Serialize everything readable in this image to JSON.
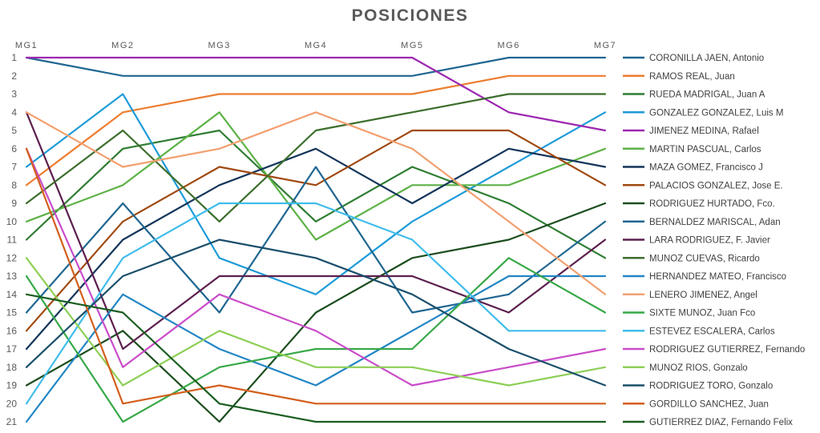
{
  "chart_data": {
    "type": "line",
    "title": "POSICIONES",
    "categories": [
      "MG1",
      "MG2",
      "MG3",
      "MG4",
      "MG5",
      "MG6",
      "MG7"
    ],
    "y_ticks": [
      1,
      2,
      3,
      4,
      5,
      6,
      7,
      8,
      9,
      10,
      11,
      12,
      13,
      14,
      15,
      16,
      17,
      18,
      19,
      20,
      21
    ],
    "ylim": [
      1,
      21
    ],
    "y_reversed": true,
    "grid": false,
    "legend_position": "right",
    "series": [
      {
        "name": "CORONILLA JAEN, Antonio",
        "color": "#1F6691",
        "values": [
          1,
          2,
          2,
          2,
          2,
          1,
          1
        ]
      },
      {
        "name": "RAMOS REAL, Juan",
        "color": "#ED7D31",
        "values": [
          8,
          4,
          3,
          3,
          3,
          2,
          2
        ]
      },
      {
        "name": "RUEDA MADRIGAL, Juan A",
        "color": "#2E7D32",
        "values": [
          11,
          6,
          5,
          10,
          7,
          9,
          12
        ]
      },
      {
        "name": "GONZALEZ GONZALEZ, Luis M",
        "color": "#1E9BD7",
        "values": [
          7,
          3,
          12,
          14,
          10,
          7,
          4
        ]
      },
      {
        "name": "JIMENEZ MEDINA, Rafael",
        "color": "#9C27B0",
        "values": [
          1,
          1,
          1,
          1,
          1,
          4,
          5
        ]
      },
      {
        "name": "MARTIN PASCUAL, Carlos",
        "color": "#5DB246",
        "values": [
          10,
          8,
          4,
          11,
          8,
          8,
          6
        ]
      },
      {
        "name": "MAZA GOMEZ, Francisco J",
        "color": "#13355A",
        "values": [
          17,
          11,
          8,
          6,
          9,
          6,
          7
        ]
      },
      {
        "name": "PALACIOS GONZALEZ, Jose E.",
        "color": "#A04A10",
        "values": [
          16,
          10,
          7,
          8,
          5,
          5,
          8
        ]
      },
      {
        "name": "RODRIGUEZ HURTADO, Fco.",
        "color": "#1B4D1E",
        "values": [
          19,
          16,
          21,
          15,
          12,
          11,
          9
        ]
      },
      {
        "name": "BERNALDEZ MARISCAL, Adan",
        "color": "#1F6691",
        "values": [
          15,
          9,
          15,
          7,
          15,
          14,
          10
        ]
      },
      {
        "name": "LARA RODRIGUEZ, F. Javier",
        "color": "#5C1F4E",
        "values": [
          4,
          17,
          13,
          13,
          13,
          15,
          11
        ]
      },
      {
        "name": "MUNOZ CUEVAS, Ricardo",
        "color": "#3C6E2C",
        "values": [
          9,
          5,
          10,
          5,
          4,
          3,
          3
        ]
      },
      {
        "name": "HERNANDEZ MATEO, Francisco",
        "color": "#2386C4",
        "values": [
          21,
          14,
          17,
          19,
          16,
          13,
          13
        ]
      },
      {
        "name": "LENERO JIMENEZ, Angel",
        "color": "#F2A070",
        "values": [
          4,
          7,
          6,
          4,
          6,
          10,
          14
        ]
      },
      {
        "name": "SIXTE MUNOZ, Juan Fco",
        "color": "#38A848",
        "values": [
          13,
          21,
          18,
          17,
          17,
          12,
          15
        ]
      },
      {
        "name": "ESTEVEZ ESCALERA, Carlos",
        "color": "#3FBCEB",
        "values": [
          20,
          12,
          9,
          9,
          11,
          16,
          16
        ]
      },
      {
        "name": "RODRIGUEZ GUTIERREZ, Fernando",
        "color": "#C94DC9",
        "values": [
          6,
          18,
          14,
          16,
          19,
          18,
          17
        ]
      },
      {
        "name": "MUNOZ RIOS, Gonzalo",
        "color": "#8DCF56",
        "values": [
          12,
          19,
          16,
          18,
          18,
          19,
          18
        ]
      },
      {
        "name": "RODRIGUEZ TORO, Gonzalo",
        "color": "#1A4F6B",
        "values": [
          18,
          13,
          11,
          12,
          14,
          17,
          19
        ]
      },
      {
        "name": "GORDILLO SANCHEZ, Juan",
        "color": "#D35F1C",
        "values": [
          6,
          20,
          19,
          20,
          20,
          20,
          20
        ]
      },
      {
        "name": "GUTIERREZ DIAZ, Fernando Felix",
        "color": "#1A5E20",
        "values": [
          14,
          15,
          20,
          21,
          21,
          21,
          21
        ]
      }
    ]
  }
}
